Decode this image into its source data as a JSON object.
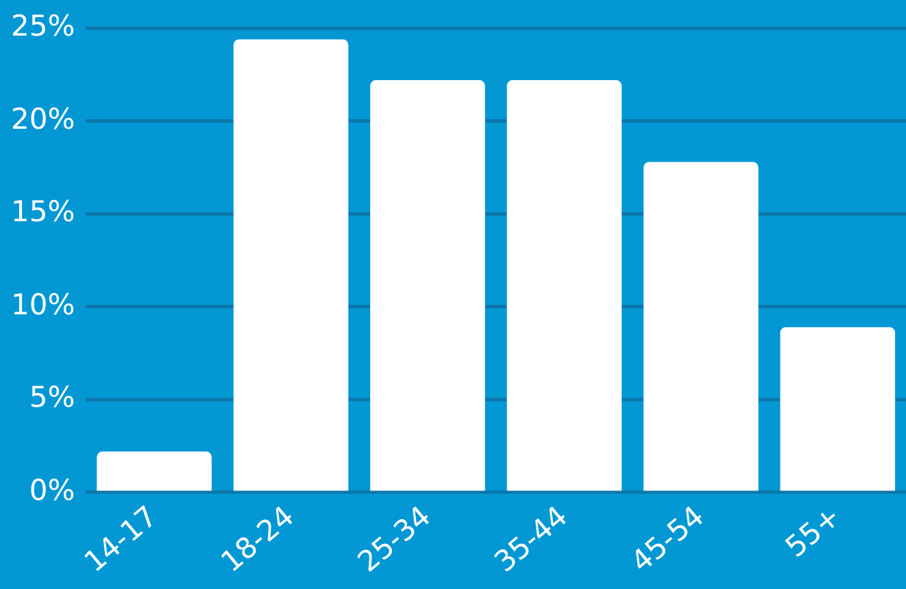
{
  "chart_data": {
    "type": "bar",
    "categories": [
      "14-17",
      "18-24",
      "25-34",
      "35-44",
      "45-54",
      "55+"
    ],
    "values": [
      2.2,
      24.4,
      22.2,
      22.2,
      17.8,
      8.9
    ],
    "color": "#ffffff",
    "ylim": [
      0,
      25
    ],
    "yticks": [
      {
        "value": 0,
        "label": "0%"
      },
      {
        "value": 5,
        "label": "5%"
      },
      {
        "value": 10,
        "label": "10%"
      },
      {
        "value": 15,
        "label": "15%"
      },
      {
        "value": 20,
        "label": "20%"
      },
      {
        "value": 25,
        "label": "25%"
      }
    ],
    "grid": "y",
    "legend": false
  }
}
